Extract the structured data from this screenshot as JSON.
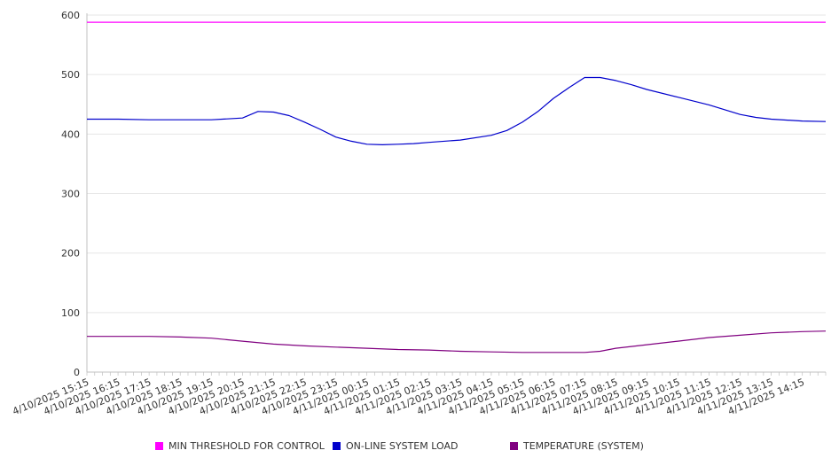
{
  "chart_data": {
    "type": "line",
    "title": "",
    "xlabel": "",
    "ylabel": "",
    "ylim": [
      0,
      600
    ],
    "y_ticks": [
      0,
      100,
      200,
      300,
      400,
      500,
      600
    ],
    "x_range": [
      "4/10/2025 15:15",
      "4/11/2025 15:00"
    ],
    "x_tick_labels": [
      "4/10/2025 15:15",
      "4/10/2025 16:15",
      "4/10/2025 17:15",
      "4/10/2025 18:15",
      "4/10/2025 19:15",
      "4/10/2025 20:15",
      "4/10/2025 21:15",
      "4/10/2025 22:15",
      "4/10/2025 23:15",
      "4/11/2025 00:15",
      "4/11/2025 01:15",
      "4/11/2025 02:15",
      "4/11/2025 03:15",
      "4/11/2025 04:15",
      "4/11/2025 05:15",
      "4/11/2025 06:15",
      "4/11/2025 07:15",
      "4/11/2025 08:15",
      "4/11/2025 09:15",
      "4/11/2025 10:15",
      "4/11/2025 11:15",
      "4/11/2025 12:15",
      "4/11/2025 13:15",
      "4/11/2025 14:15"
    ],
    "grid": "horizontal",
    "legend_position": "bottom",
    "series": [
      {
        "name": "MIN THRESHOLD FOR CONTROL",
        "color": "#ff00ff",
        "points": [
          [
            "4/10/2025 15:15",
            588
          ],
          [
            "4/11/2025 15:00",
            588
          ]
        ]
      },
      {
        "name": "ON-LINE SYSTEM LOAD",
        "color": "#0000cc",
        "points": [
          [
            "4/10/2025 15:15",
            425
          ],
          [
            "4/10/2025 16:15",
            425
          ],
          [
            "4/10/2025 17:15",
            424
          ],
          [
            "4/10/2025 18:15",
            424
          ],
          [
            "4/10/2025 19:15",
            424
          ],
          [
            "4/10/2025 20:15",
            427
          ],
          [
            "4/10/2025 20:45",
            438
          ],
          [
            "4/10/2025 21:15",
            437
          ],
          [
            "4/10/2025 21:45",
            431
          ],
          [
            "4/10/2025 22:15",
            420
          ],
          [
            "4/10/2025 22:45",
            408
          ],
          [
            "4/10/2025 23:15",
            395
          ],
          [
            "4/10/2025 23:45",
            388
          ],
          [
            "4/11/2025 00:15",
            383
          ],
          [
            "4/11/2025 00:45",
            382
          ],
          [
            "4/11/2025 01:15",
            383
          ],
          [
            "4/11/2025 01:45",
            384
          ],
          [
            "4/11/2025 02:15",
            386
          ],
          [
            "4/11/2025 03:15",
            390
          ],
          [
            "4/11/2025 04:15",
            398
          ],
          [
            "4/11/2025 04:45",
            406
          ],
          [
            "4/11/2025 05:15",
            420
          ],
          [
            "4/11/2025 05:45",
            438
          ],
          [
            "4/11/2025 06:15",
            460
          ],
          [
            "4/11/2025 06:45",
            478
          ],
          [
            "4/11/2025 07:15",
            495
          ],
          [
            "4/11/2025 07:45",
            495
          ],
          [
            "4/11/2025 08:15",
            490
          ],
          [
            "4/11/2025 08:45",
            483
          ],
          [
            "4/11/2025 09:15",
            475
          ],
          [
            "4/11/2025 10:15",
            462
          ],
          [
            "4/11/2025 11:15",
            449
          ],
          [
            "4/11/2025 12:15",
            433
          ],
          [
            "4/11/2025 12:45",
            428
          ],
          [
            "4/11/2025 13:15",
            425
          ],
          [
            "4/11/2025 14:15",
            422
          ],
          [
            "4/11/2025 15:00",
            421
          ]
        ]
      },
      {
        "name": "TEMPERATURE (SYSTEM)",
        "color": "#800080",
        "points": [
          [
            "4/10/2025 15:15",
            60
          ],
          [
            "4/10/2025 17:15",
            60
          ],
          [
            "4/10/2025 18:15",
            59
          ],
          [
            "4/10/2025 19:15",
            57
          ],
          [
            "4/10/2025 20:15",
            52
          ],
          [
            "4/10/2025 21:15",
            47
          ],
          [
            "4/10/2025 22:15",
            44
          ],
          [
            "4/10/2025 23:15",
            42
          ],
          [
            "4/11/2025 00:15",
            40
          ],
          [
            "4/11/2025 01:15",
            38
          ],
          [
            "4/11/2025 02:15",
            37
          ],
          [
            "4/11/2025 03:15",
            35
          ],
          [
            "4/11/2025 04:15",
            34
          ],
          [
            "4/11/2025 05:15",
            33
          ],
          [
            "4/11/2025 06:15",
            33
          ],
          [
            "4/11/2025 07:15",
            33
          ],
          [
            "4/11/2025 07:45",
            35
          ],
          [
            "4/11/2025 08:15",
            40
          ],
          [
            "4/11/2025 09:15",
            46
          ],
          [
            "4/11/2025 10:15",
            52
          ],
          [
            "4/11/2025 11:15",
            58
          ],
          [
            "4/11/2025 12:15",
            62
          ],
          [
            "4/11/2025 13:15",
            66
          ],
          [
            "4/11/2025 14:15",
            68
          ],
          [
            "4/11/2025 15:00",
            69
          ]
        ]
      }
    ]
  }
}
